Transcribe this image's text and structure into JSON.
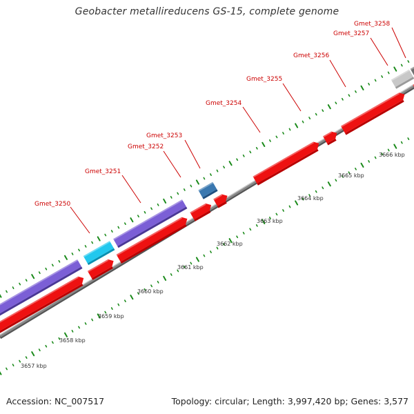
{
  "title": "Geobacter metallireducens GS-15, complete genome",
  "footer": {
    "accession": "Accession: NC_007517",
    "topology": "Topology: circular; Length: 3,997,420 bp; Genes: 3,577"
  },
  "colors": {
    "cds": "#ee1111",
    "cds_shade": "#b80000",
    "gene_label": "#cc0000",
    "tick": "#1a8a1a",
    "backbone": "#888888",
    "purple": "#7b5fd6",
    "cyan": "#22c8ee",
    "steelblue": "#3a78b0",
    "lightgray": "#c8c8c8",
    "darkgray": "#707070"
  },
  "kbp_labels": [
    "3657 kbp",
    "3658 kbp",
    "3659 kbp",
    "3660 kbp",
    "3661 kbp",
    "3662 kbp",
    "3663 kbp",
    "3664 kbp",
    "3665 kbp",
    "3666 kbp"
  ],
  "gene_labels": [
    "Gmet_3250",
    "Gmet_3251",
    "Gmet_3252",
    "Gmet_3253",
    "Gmet_3254",
    "Gmet_3255",
    "Gmet_3256",
    "Gmet_3257",
    "Gmet_3258"
  ]
}
